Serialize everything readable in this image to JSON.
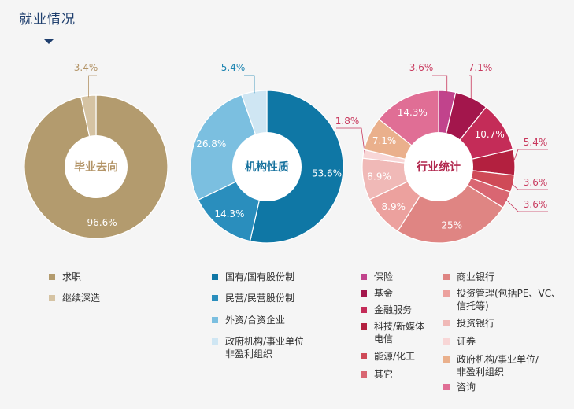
{
  "header": {
    "title": "就业情况"
  },
  "chart_data": [
    {
      "type": "pie",
      "center_label": "毕业去向",
      "center_color": "#b39467",
      "label_color": "#b39467",
      "slices": [
        {
          "name": "求职",
          "value": 96.6,
          "label": "96.6%",
          "color": "#b39b6e"
        },
        {
          "name": "继续深造",
          "value": 3.4,
          "label": "3.4%",
          "color": "#d5c3a3"
        }
      ]
    },
    {
      "type": "pie",
      "center_label": "机构性质",
      "center_color": "#17729e",
      "label_color": "#1a83b0",
      "slices": [
        {
          "name": "国有/国有股份制",
          "value": 53.6,
          "label": "53.6%",
          "color": "#0f77a5"
        },
        {
          "name": "民营/民营股份制",
          "value": 14.3,
          "label": "14.3%",
          "color": "#2a8ebd"
        },
        {
          "name": "外资/合资企业",
          "value": 26.8,
          "label": "26.8%",
          "color": "#7bbfe0"
        },
        {
          "name": "政府机构/事业单位非盈利组织",
          "value": 5.4,
          "label": "5.4%",
          "color": "#cfe6f3"
        }
      ]
    },
    {
      "type": "pie",
      "center_label": "行业统计",
      "center_color": "#b2284e",
      "label_color": "#c8375c",
      "slices": [
        {
          "name": "保险",
          "value": 3.6,
          "label": "3.6%",
          "color": "#c1438c"
        },
        {
          "name": "基金",
          "value": 7.1,
          "label": "7.1%",
          "color": "#a3164c"
        },
        {
          "name": "金融服务",
          "value": 10.7,
          "label": "10.7%",
          "color": "#c42c58"
        },
        {
          "name": "科技/新媒体电信",
          "value": 5.4,
          "label": "5.4%",
          "color": "#b3203f"
        },
        {
          "name": "能源/化工",
          "value": 3.6,
          "label": "3.6%",
          "color": "#cf4a57"
        },
        {
          "name": "其它",
          "value": 3.6,
          "label": "3.6%",
          "color": "#d96672"
        },
        {
          "name": "商业银行",
          "value": 25,
          "label": "25%",
          "color": "#df8583"
        },
        {
          "name": "投资管理(包括PE、VC、信托等)",
          "value": 8.9,
          "label": "8.9%",
          "color": "#eca19e"
        },
        {
          "name": "投资银行",
          "value": 8.9,
          "label": "8.9%",
          "color": "#f0b9b7"
        },
        {
          "name": "证券",
          "value": 1.8,
          "label": "1.8%",
          "color": "#f8d6d6"
        },
        {
          "name": "政府机构/事业单位/非盈利组织",
          "value": 7.1,
          "label": "7.1%",
          "color": "#eab08c"
        },
        {
          "name": "咨询",
          "value": 14.3,
          "label": "14.3%",
          "color": "#e06e95"
        }
      ]
    }
  ],
  "legends": {
    "career": [
      {
        "label": "求职",
        "color": "#b39b6e"
      },
      {
        "label": "继续深造",
        "color": "#d5c3a3"
      }
    ],
    "institution": [
      {
        "label": "国有/国有股份制",
        "color": "#0f77a5"
      },
      {
        "label": "民营/民营股份制",
        "color": "#2a8ebd"
      },
      {
        "label": "外资/合资企业",
        "color": "#7bbfe0"
      },
      {
        "label": "政府机构/事业单位\n非盈利组织",
        "color": "#cfe6f3"
      }
    ],
    "industry_left": [
      {
        "label": "保险",
        "color": "#c1438c"
      },
      {
        "label": "基金",
        "color": "#a3164c"
      },
      {
        "label": "金融服务",
        "color": "#c42c58"
      },
      {
        "label": "科技/新媒体\n电信",
        "color": "#b3203f"
      },
      {
        "label": "能源/化工",
        "color": "#cf4a57"
      },
      {
        "label": "其它",
        "color": "#d96672"
      }
    ],
    "industry_right": [
      {
        "label": "商业银行",
        "color": "#df8583"
      },
      {
        "label": "投资管理(包括PE、VC、\n信托等)",
        "color": "#eca19e"
      },
      {
        "label": "投资银行",
        "color": "#f0b9b7"
      },
      {
        "label": "证券",
        "color": "#f8d6d6"
      },
      {
        "label": "政府机构/事业单位/\n非盈利组织",
        "color": "#eab08c"
      },
      {
        "label": "咨询",
        "color": "#e06e95"
      }
    ]
  }
}
